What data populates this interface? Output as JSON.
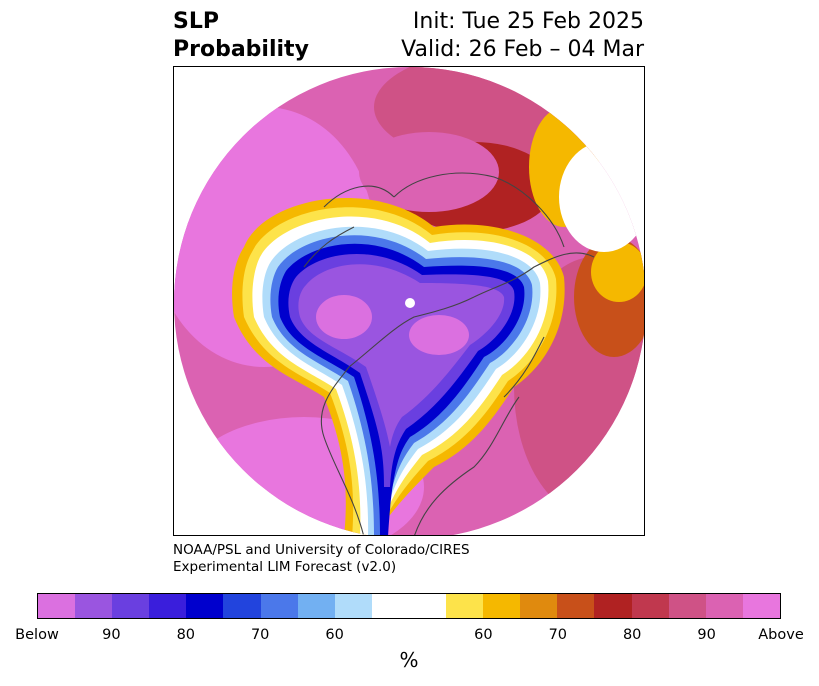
{
  "header": {
    "variable": "SLP",
    "product": "Probability",
    "init": "Init: Tue 25 Feb 2025",
    "valid": "Valid: 26 Feb – 04 Mar"
  },
  "credit": {
    "line1": "NOAA/PSL and University of Colorado/CIRES",
    "line2": "Experimental LIM Forecast (v2.0)"
  },
  "colorbar": {
    "unit": "%",
    "below_colors": [
      "#db70e0",
      "#9a55e0",
      "#6a3fe0",
      "#3a1edc",
      "#0000cd",
      "#2244dd",
      "#4b78ea",
      "#72b0f2",
      "#b0dcfa"
    ],
    "neutral_color": "#ffffff",
    "above_colors": [
      "#fde34a",
      "#f5b800",
      "#e08a0e",
      "#c8501a",
      "#b02222",
      "#c0384e",
      "#cf5286",
      "#db62b2",
      "#e876de"
    ],
    "tick_labels": [
      "Below",
      "90",
      "80",
      "70",
      "60",
      "60",
      "70",
      "80",
      "90",
      "Above"
    ]
  }
}
